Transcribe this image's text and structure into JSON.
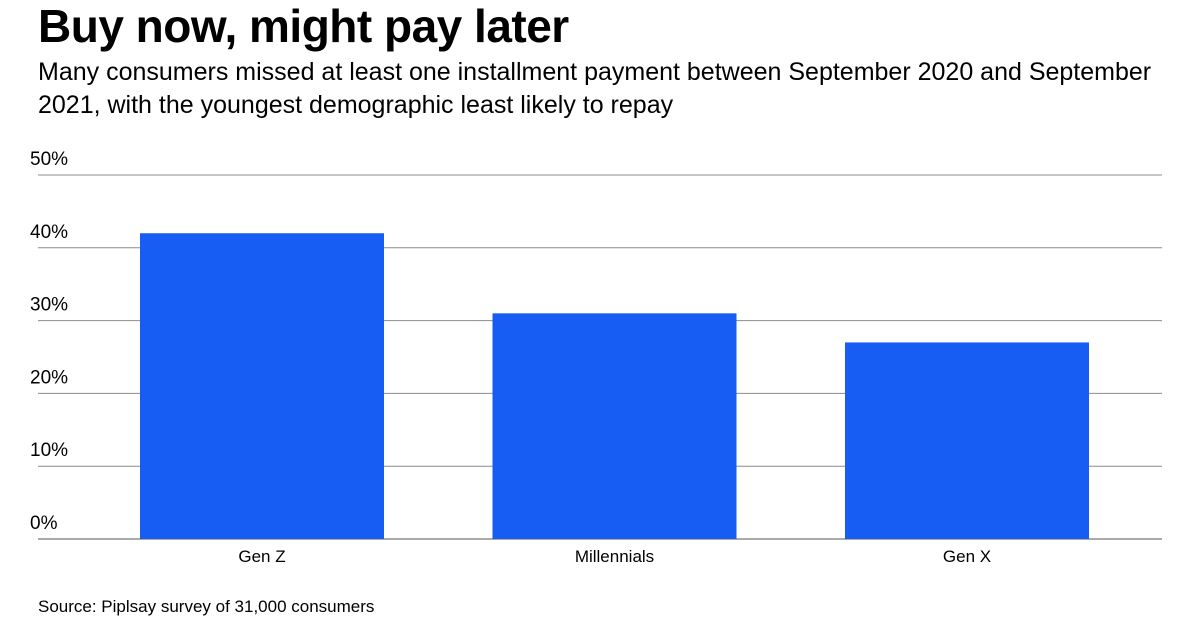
{
  "header": {
    "title": "Buy now, might pay later",
    "subtitle": "Many consumers missed at least one installment payment between September 2020 and September 2021, with the youngest demographic least likely to repay"
  },
  "footer": {
    "source": "Source: Piplsay survey of 31,000 consumers"
  },
  "colors": {
    "bar": "#175cf3",
    "gridline": "#8c8c8c",
    "text": "#000000"
  },
  "chart_data": {
    "type": "bar",
    "categories": [
      "Gen Z",
      "Millennials",
      "Gen X"
    ],
    "values": [
      42,
      31,
      27
    ],
    "unit": "%",
    "ylim": [
      0,
      50
    ],
    "yticks": [
      0,
      10,
      20,
      30,
      40,
      50
    ],
    "ytick_labels": [
      "0%",
      "10%",
      "20%",
      "30%",
      "40%",
      "50%"
    ],
    "grid": true,
    "legend": "none"
  }
}
